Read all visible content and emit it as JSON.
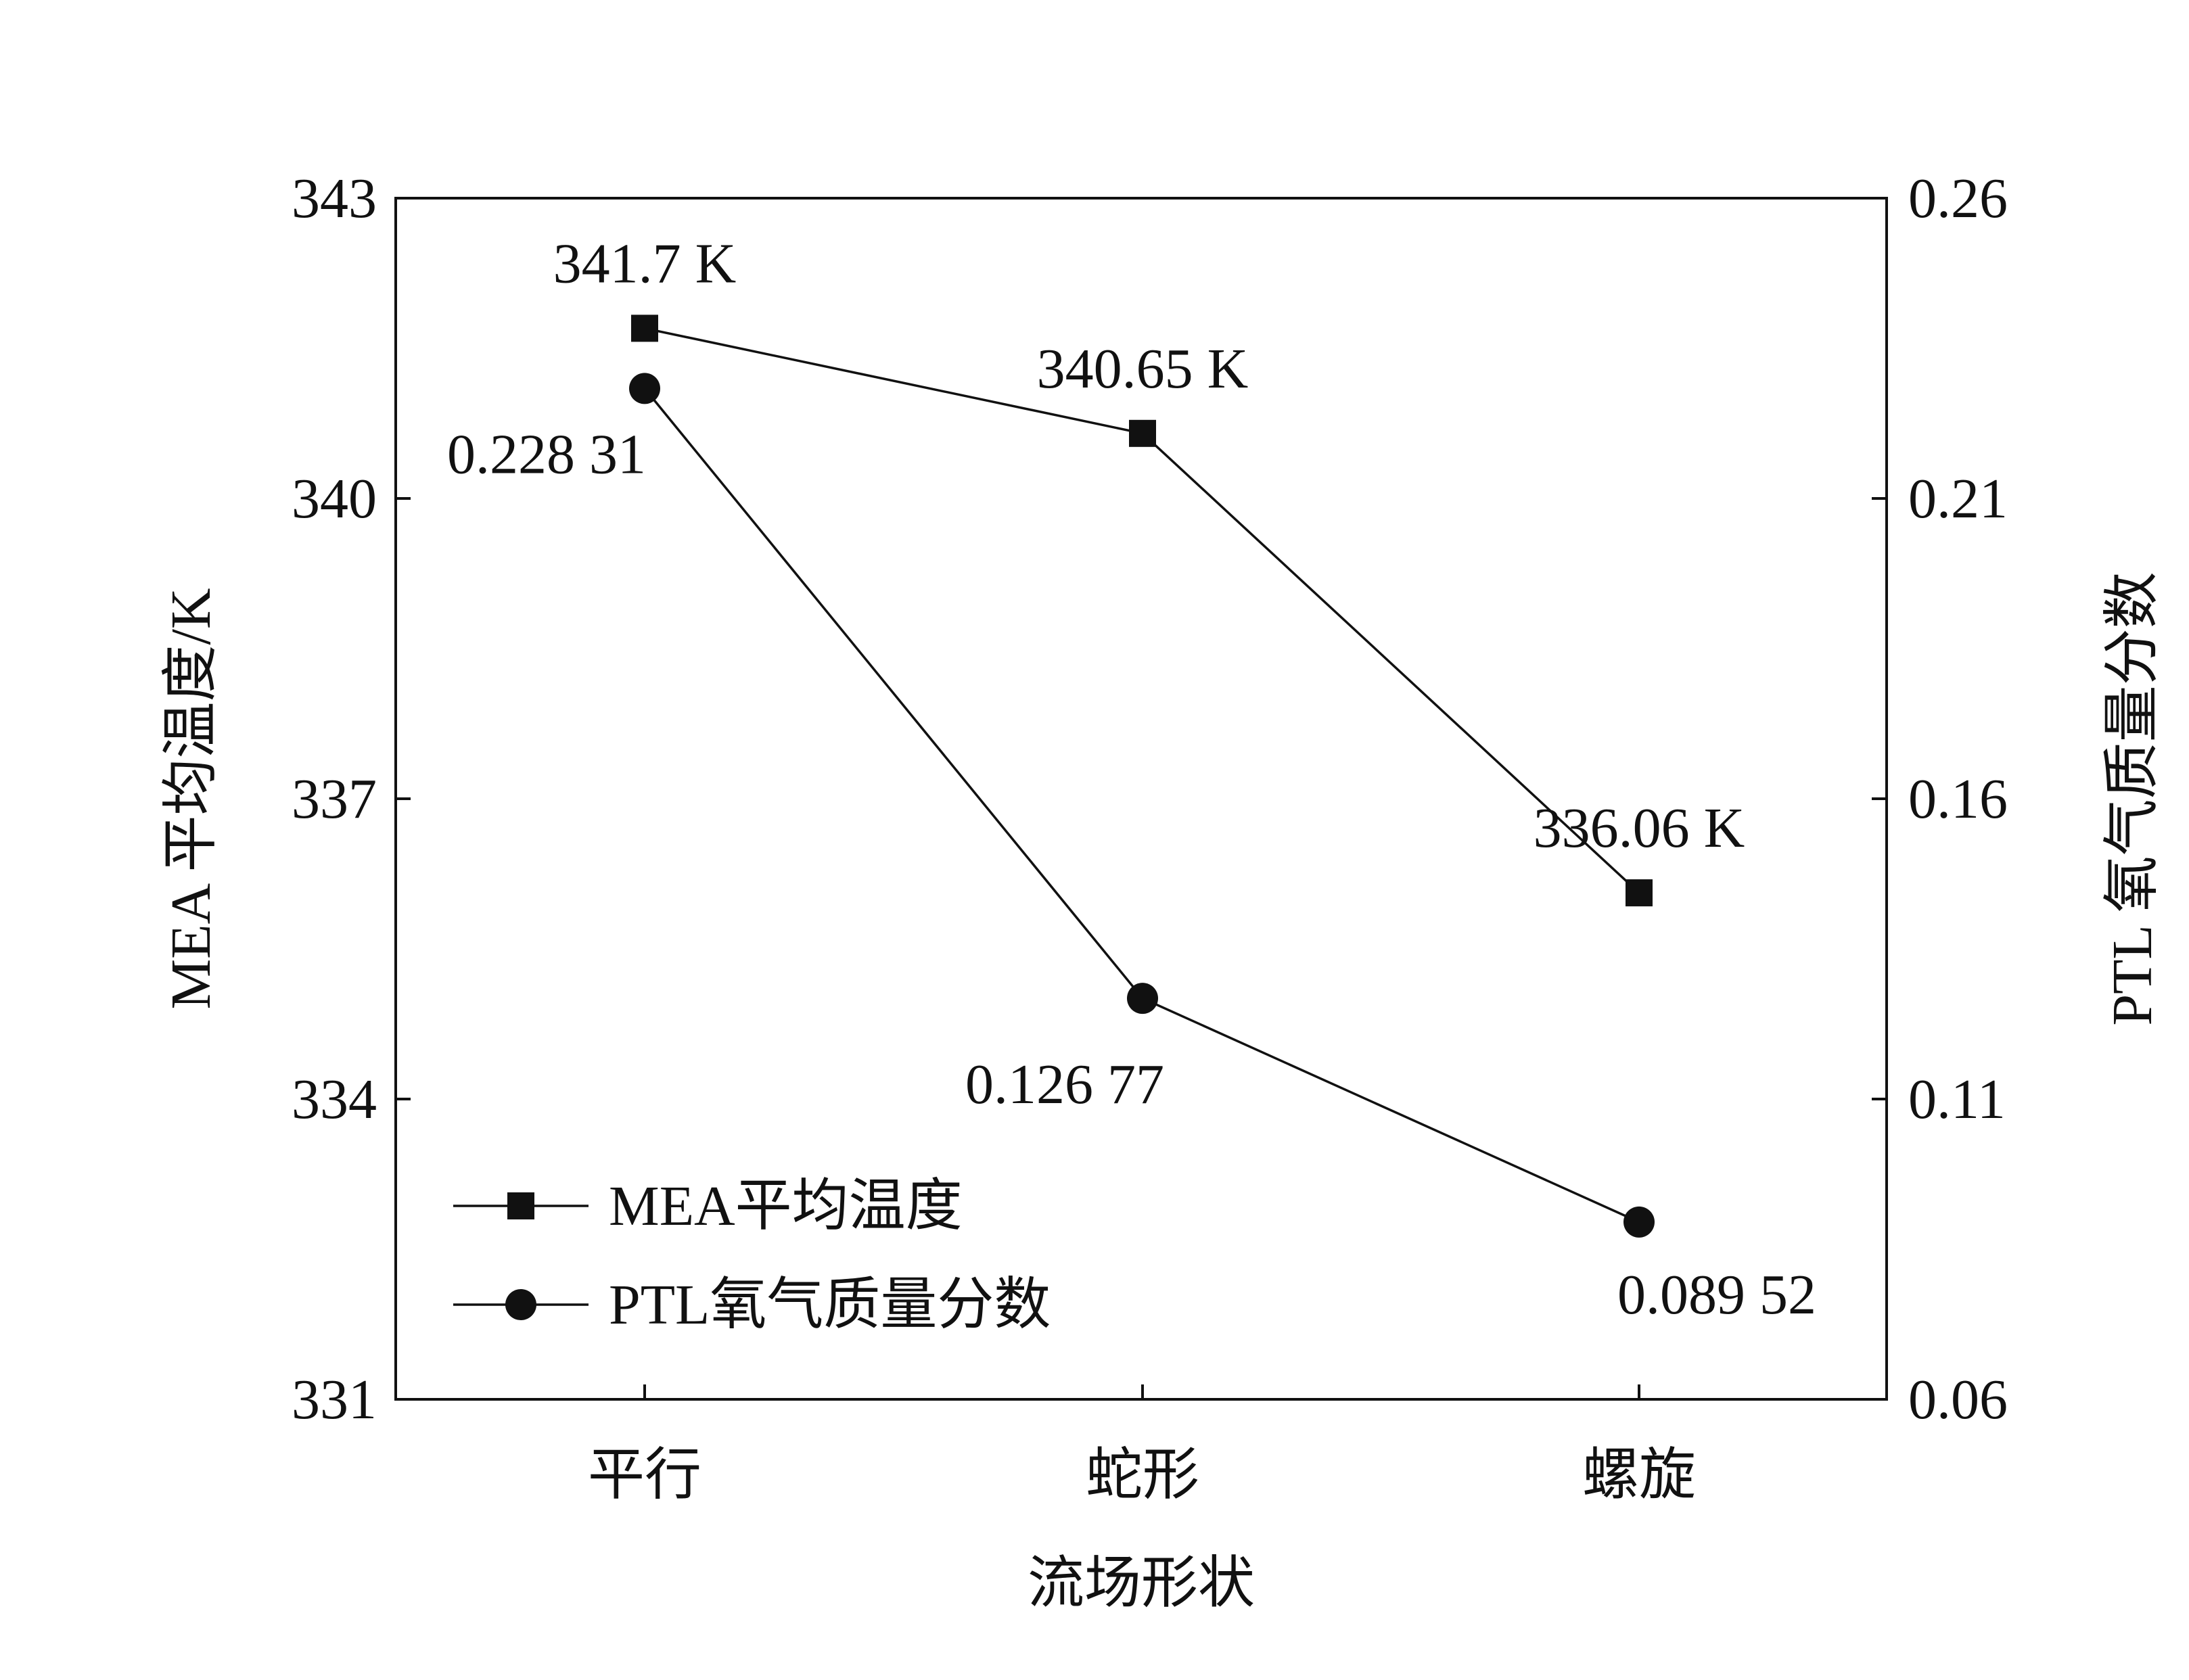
{
  "chart_data": {
    "type": "line",
    "title": "",
    "xlabel": "流场形状",
    "ylabel": "MEA 平均温度/K",
    "y2label": "PTL 氧气质量分数",
    "categories": [
      "平行",
      "蛇形",
      "螺旋"
    ],
    "ylim": [
      331,
      343
    ],
    "yticks": [
      331,
      334,
      337,
      340,
      343
    ],
    "y2lim": [
      0.06,
      0.26
    ],
    "y2ticks": [
      0.06,
      0.11,
      0.16,
      0.21,
      0.26
    ],
    "grid": false,
    "legend_position": "bottom-left",
    "series": [
      {
        "name": "MEA平均温度",
        "axis": "left",
        "marker": "square",
        "values": [
          341.7,
          340.65,
          336.06
        ],
        "labels": [
          "341.7 K",
          "340.65 K",
          "336.06 K"
        ]
      },
      {
        "name": "PTL氧气质量分数",
        "axis": "right",
        "marker": "circle",
        "values": [
          0.22831,
          0.12677,
          0.08952
        ],
        "labels": [
          "0.228 31",
          "0.126 77",
          "0.089 52"
        ]
      }
    ],
    "colors": {
      "line": "#111111",
      "marker": "#111111",
      "axis": "#111111",
      "background": "#ffffff"
    }
  }
}
